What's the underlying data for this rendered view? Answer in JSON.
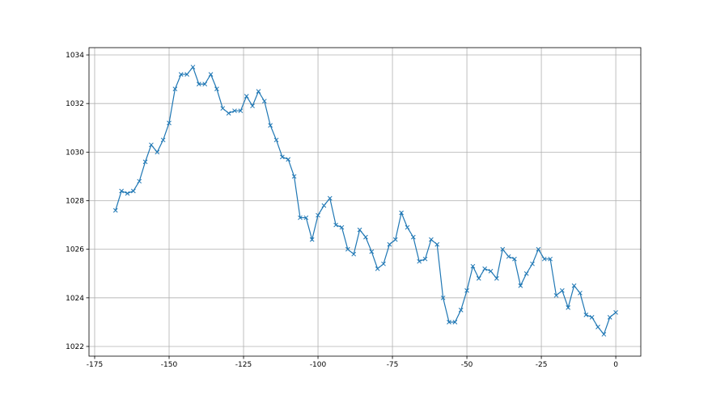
{
  "chart_data": {
    "type": "line",
    "marker": "x",
    "grid": true,
    "x": [
      -168,
      -166,
      -164,
      -162,
      -160,
      -158,
      -156,
      -154,
      -152,
      -150,
      -148,
      -146,
      -144,
      -142,
      -140,
      -138,
      -136,
      -134,
      -132,
      -130,
      -128,
      -126,
      -124,
      -122,
      -120,
      -118,
      -116,
      -114,
      -112,
      -110,
      -108,
      -106,
      -104,
      -102,
      -100,
      -98,
      -96,
      -94,
      -92,
      -90,
      -88,
      -86,
      -84,
      -82,
      -80,
      -78,
      -76,
      -74,
      -72,
      -70,
      -68,
      -66,
      -64,
      -62,
      -60,
      -58,
      -56,
      -54,
      -52,
      -50,
      -48,
      -46,
      -44,
      -42,
      -40,
      -38,
      -36,
      -34,
      -32,
      -30,
      -28,
      -26,
      -24,
      -22,
      -20,
      -18,
      -16,
      -14,
      -12,
      -10,
      -8,
      -6,
      -4,
      -2,
      0
    ],
    "series": [
      {
        "color": "#1f77b4",
        "values": [
          1027.6,
          1028.4,
          1028.3,
          1028.4,
          1028.8,
          1029.6,
          1030.3,
          1030.0,
          1030.5,
          1031.2,
          1032.6,
          1033.2,
          1033.2,
          1033.5,
          1032.8,
          1032.8,
          1033.2,
          1032.6,
          1031.8,
          1031.6,
          1031.7,
          1031.7,
          1032.3,
          1031.9,
          1032.5,
          1032.1,
          1031.1,
          1030.5,
          1029.8,
          1029.7,
          1029.0,
          1027.3,
          1027.3,
          1026.4,
          1027.4,
          1027.8,
          1028.1,
          1027.0,
          1026.9,
          1026.0,
          1025.8,
          1026.8,
          1026.5,
          1025.9,
          1025.2,
          1025.4,
          1026.2,
          1026.4,
          1027.5,
          1026.9,
          1026.5,
          1025.5,
          1025.6,
          1026.4,
          1026.2,
          1024.0,
          1023.0,
          1023.0,
          1023.5,
          1024.3,
          1025.3,
          1024.8,
          1025.2,
          1025.1,
          1024.8,
          1026.0,
          1025.7,
          1025.6,
          1024.5,
          1025.0,
          1025.4,
          1026.0,
          1025.6,
          1025.6,
          1024.1,
          1024.3,
          1023.6,
          1024.5,
          1024.2,
          1023.3,
          1023.2,
          1022.8,
          1022.5,
          1023.2,
          1023.4
        ]
      }
    ],
    "xlim": [
      -176.9,
      8.4
    ],
    "xticks": [
      -175,
      -150,
      -125,
      -100,
      -75,
      -50,
      -25,
      0
    ],
    "ylim": [
      1021.6,
      1034.3
    ],
    "yticks": [
      1022,
      1024,
      1026,
      1028,
      1030,
      1032,
      1034
    ]
  }
}
